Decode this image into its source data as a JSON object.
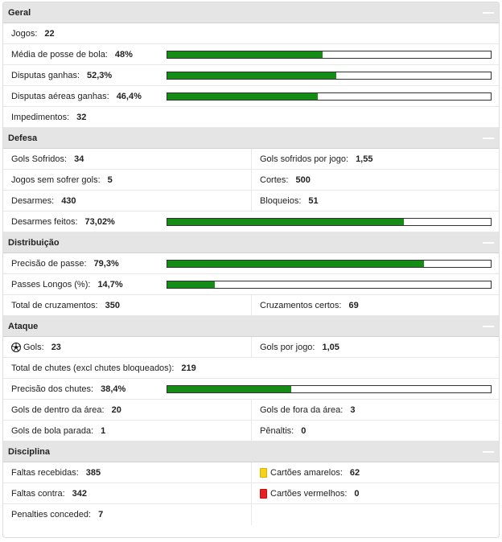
{
  "sections": {
    "geral": {
      "title": "Geral",
      "jogos": {
        "label": "Jogos:",
        "value": "22"
      },
      "posse": {
        "label": "Média de posse de bola:",
        "value": "48%",
        "pct": 48
      },
      "disputas": {
        "label": "Disputas ganhas:",
        "value": "52,3%",
        "pct": 52.3
      },
      "aereas": {
        "label": "Disputas aéreas ganhas:",
        "value": "46,4%",
        "pct": 46.4
      },
      "impedimentos": {
        "label": "Impedimentos:",
        "value": "32"
      }
    },
    "defesa": {
      "title": "Defesa",
      "gols_sofridos": {
        "label": "Gols Sofridos:",
        "value": "34"
      },
      "gols_sofridos_jogo": {
        "label": "Gols sofridos por jogo:",
        "value": "1,55"
      },
      "sem_sofrer": {
        "label": "Jogos sem sofrer gols:",
        "value": "5"
      },
      "cortes": {
        "label": "Cortes:",
        "value": "500"
      },
      "desarmes": {
        "label": "Desarmes:",
        "value": "430"
      },
      "bloqueios": {
        "label": "Bloqueios:",
        "value": "51"
      },
      "desarmes_feitos": {
        "label": "Desarmes feitos:",
        "value": "73,02%",
        "pct": 73.02
      }
    },
    "distribuicao": {
      "title": "Distribuição",
      "precisao_passe": {
        "label": "Precisão de passe:",
        "value": "79,3%",
        "pct": 79.3
      },
      "passes_longos": {
        "label": "Passes Longos (%):",
        "value": "14,7%",
        "pct": 14.7
      },
      "cruzamentos": {
        "label": "Total de cruzamentos:",
        "value": "350"
      },
      "cruzamentos_certos": {
        "label": "Cruzamentos certos:",
        "value": "69"
      }
    },
    "ataque": {
      "title": "Ataque",
      "gols": {
        "label": "Gols:",
        "value": "23",
        "icon": "soccer-ball-icon"
      },
      "gols_jogo": {
        "label": "Gols por jogo:",
        "value": "1,05"
      },
      "chutes": {
        "label": "Total de chutes (excl chutes bloqueados):",
        "value": "219"
      },
      "precisao_chutes": {
        "label": "Precisão dos chutes:",
        "value": "38,4%",
        "pct": 38.4
      },
      "dentro_area": {
        "label": "Gols de dentro da área:",
        "value": "20"
      },
      "fora_area": {
        "label": "Gols de fora da área:",
        "value": "3"
      },
      "bola_parada": {
        "label": "Gols de bola parada:",
        "value": "1"
      },
      "penaltis": {
        "label": "Pênaltis:",
        "value": "0"
      }
    },
    "disciplina": {
      "title": "Disciplina",
      "faltas_recebidas": {
        "label": "Faltas recebidas:",
        "value": "385"
      },
      "amarelos": {
        "label": "Cartões amarelos:",
        "value": "62",
        "icon": "yellow-card-icon",
        "color": "#f5d21b"
      },
      "faltas_contra": {
        "label": "Faltas contra:",
        "value": "342"
      },
      "vermelhos": {
        "label": "Cartões vermelhos:",
        "value": "0",
        "icon": "red-card-icon",
        "color": "#e62222"
      },
      "penalties_conceded": {
        "label": "Penalties conceded:",
        "value": "7"
      }
    }
  },
  "colors": {
    "bar_fill": "#158c15",
    "header_bg": "#e5e5e5"
  }
}
